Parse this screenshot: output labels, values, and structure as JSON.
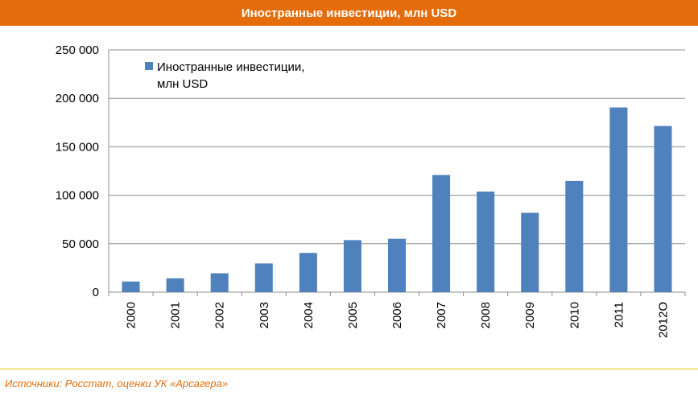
{
  "header": {
    "title": "Иностранные инвестиции, млн USD"
  },
  "footer": {
    "source": "Источники: Росстат, оценки УК «Арсагера»"
  },
  "chart_data": {
    "type": "bar",
    "title": "Иностранные инвестиции, млн USD",
    "categories": [
      "2000",
      "2001",
      "2002",
      "2003",
      "2004",
      "2005",
      "2006",
      "2007",
      "2008",
      "2009",
      "2010",
      "2011",
      "2012О"
    ],
    "series": [
      {
        "name": "Иностранные инвестиции, млн USD",
        "legend_lines": [
          "Иностранные инвестиции,",
          "млн USD"
        ],
        "color": "#4F81BD",
        "values": [
          11000,
          14300,
          19500,
          29600,
          40500,
          53700,
          55100,
          120900,
          103800,
          81900,
          114700,
          190600,
          171500
        ]
      }
    ],
    "yticks": [
      "0",
      "50 000",
      "100 000",
      "150 000",
      "200 000",
      "250 000"
    ],
    "ylim": [
      0,
      250000
    ],
    "grid": true,
    "legend_position": "top-left"
  }
}
